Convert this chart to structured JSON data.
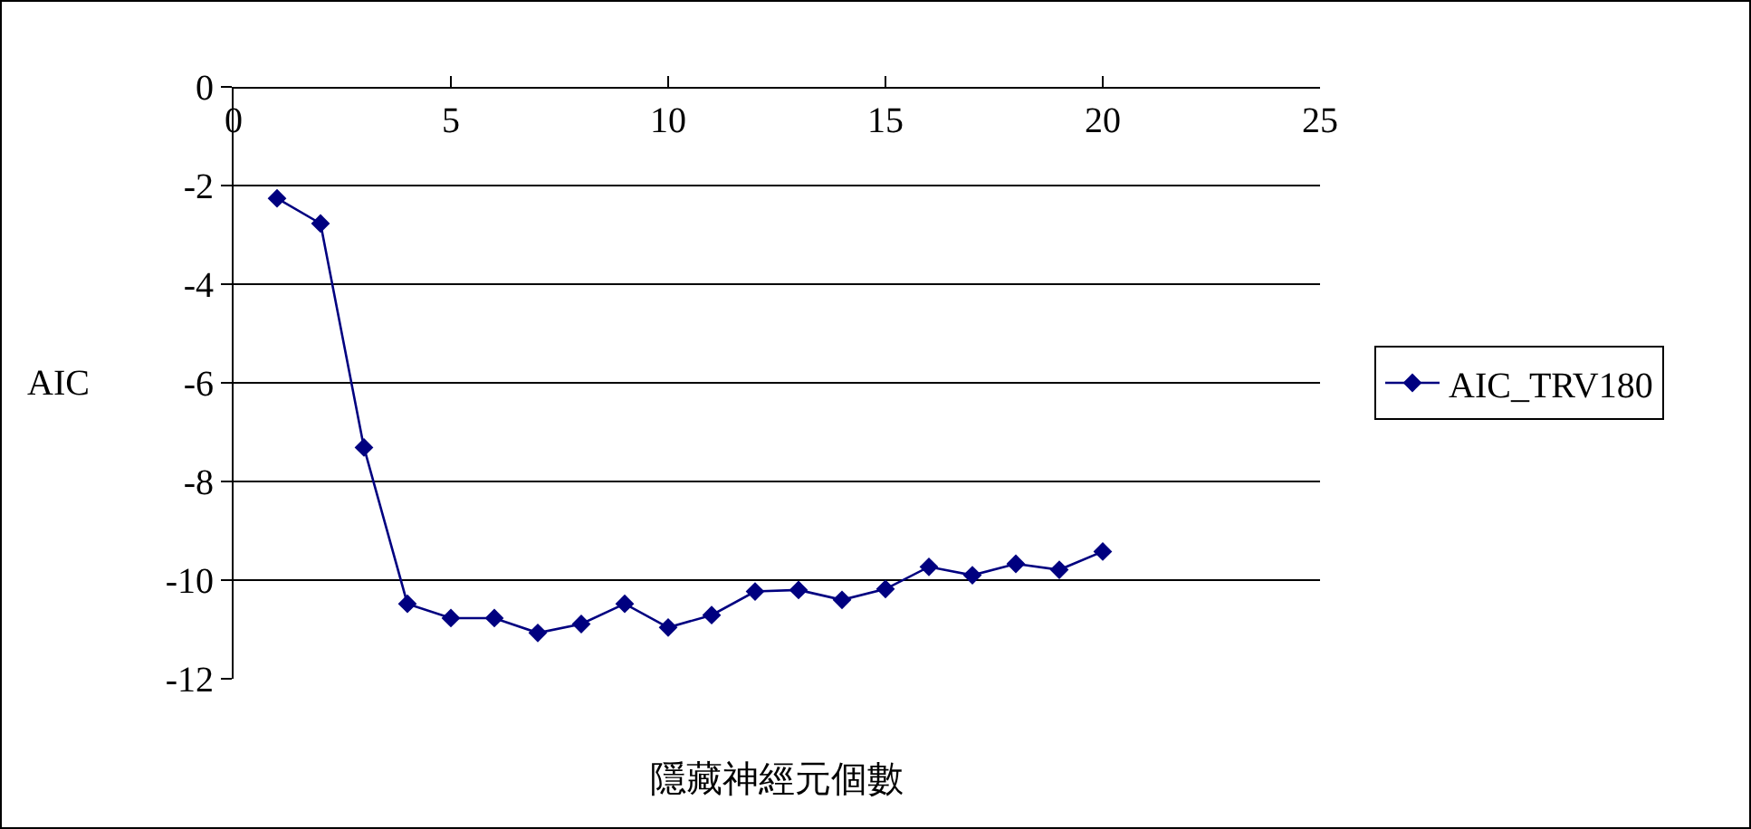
{
  "chart_data": {
    "type": "line",
    "xlabel": "隱藏神經元個數",
    "ylabel": "AIC",
    "x": [
      1,
      2,
      3,
      4,
      5,
      6,
      7,
      8,
      9,
      10,
      11,
      12,
      13,
      14,
      15,
      16,
      17,
      18,
      19,
      20
    ],
    "series": [
      {
        "name": "AIC_TRV180",
        "color": "#000080",
        "values": [
          -2.26,
          -2.77,
          -7.31,
          -10.48,
          -10.77,
          -10.77,
          -11.07,
          -10.89,
          -10.48,
          -10.96,
          -10.71,
          -10.23,
          -10.2,
          -10.4,
          -10.18,
          -9.73,
          -9.9,
          -9.67,
          -9.79,
          -9.42
        ]
      }
    ],
    "xlim": [
      0,
      25
    ],
    "xticks": [
      0,
      5,
      10,
      15,
      20,
      25
    ],
    "ylim": [
      -12,
      0
    ],
    "yticks": [
      0,
      -2,
      -4,
      -6,
      -8,
      -10,
      -12
    ],
    "grid": "y",
    "legend": "right",
    "marker": "diamond",
    "line_style": "solid"
  }
}
